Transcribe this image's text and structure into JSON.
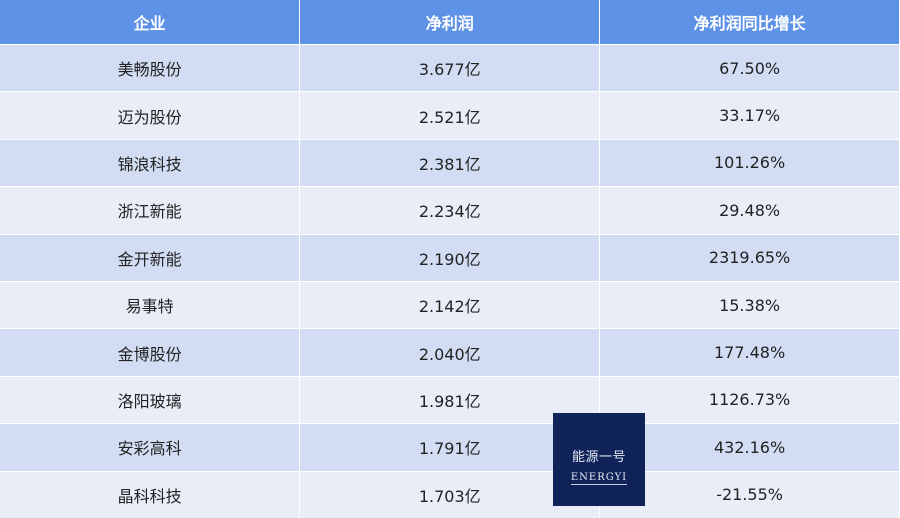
{
  "table": {
    "headers": [
      "企业",
      "净利润",
      "净利润同比增长"
    ],
    "rows": [
      [
        "美畅股份",
        "3.677亿",
        "67.50%"
      ],
      [
        "迈为股份",
        "2.521亿",
        "33.17%"
      ],
      [
        "锦浪科技",
        "2.381亿",
        "101.26%"
      ],
      [
        "浙江新能",
        "2.234亿",
        "29.48%"
      ],
      [
        "金开新能",
        "2.190亿",
        "2319.65%"
      ],
      [
        "易事特",
        "2.142亿",
        "15.38%"
      ],
      [
        "金博股份",
        "2.040亿",
        "177.48%"
      ],
      [
        "洛阳玻璃",
        "1.981亿",
        "1126.73%"
      ],
      [
        "安彩高科",
        "1.791亿",
        "432.16%"
      ],
      [
        "晶科科技",
        "1.703亿",
        "-21.55%"
      ]
    ]
  },
  "watermark": {
    "cn": "能源一号",
    "en": "ENERGYI"
  },
  "colors": {
    "header": "#5e92e6",
    "row_dark": "#d2ddf3",
    "row_light": "#e9edf8",
    "logo_bg": "#0f2359"
  }
}
